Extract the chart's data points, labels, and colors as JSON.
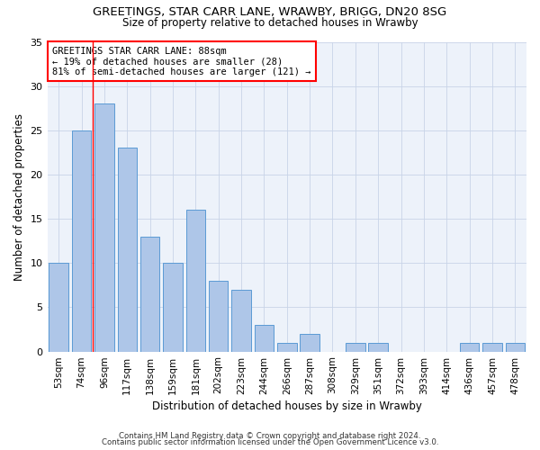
{
  "title": "GREETINGS, STAR CARR LANE, WRAWBY, BRIGG, DN20 8SG",
  "subtitle": "Size of property relative to detached houses in Wrawby",
  "xlabel": "Distribution of detached houses by size in Wrawby",
  "ylabel": "Number of detached properties",
  "categories": [
    "53sqm",
    "74sqm",
    "96sqm",
    "117sqm",
    "138sqm",
    "159sqm",
    "181sqm",
    "202sqm",
    "223sqm",
    "244sqm",
    "266sqm",
    "287sqm",
    "308sqm",
    "329sqm",
    "351sqm",
    "372sqm",
    "393sqm",
    "414sqm",
    "436sqm",
    "457sqm",
    "478sqm"
  ],
  "values": [
    10,
    25,
    28,
    23,
    13,
    10,
    16,
    8,
    7,
    3,
    1,
    2,
    0,
    1,
    1,
    0,
    0,
    0,
    1,
    1,
    1
  ],
  "bar_color": "#aec6e8",
  "bar_edge_color": "#5b9bd5",
  "bar_edge_width": 0.7,
  "red_line_x": 1.5,
  "annotation_title": "GREETINGS STAR CARR LANE: 88sqm",
  "annotation_line1": "← 19% of detached houses are smaller (28)",
  "annotation_line2": "81% of semi-detached houses are larger (121) →",
  "ylim": [
    0,
    35
  ],
  "yticks": [
    0,
    5,
    10,
    15,
    20,
    25,
    30,
    35
  ],
  "background_color": "#edf2fa",
  "footer1": "Contains HM Land Registry data © Crown copyright and database right 2024.",
  "footer2": "Contains public sector information licensed under the Open Government Licence v3.0."
}
